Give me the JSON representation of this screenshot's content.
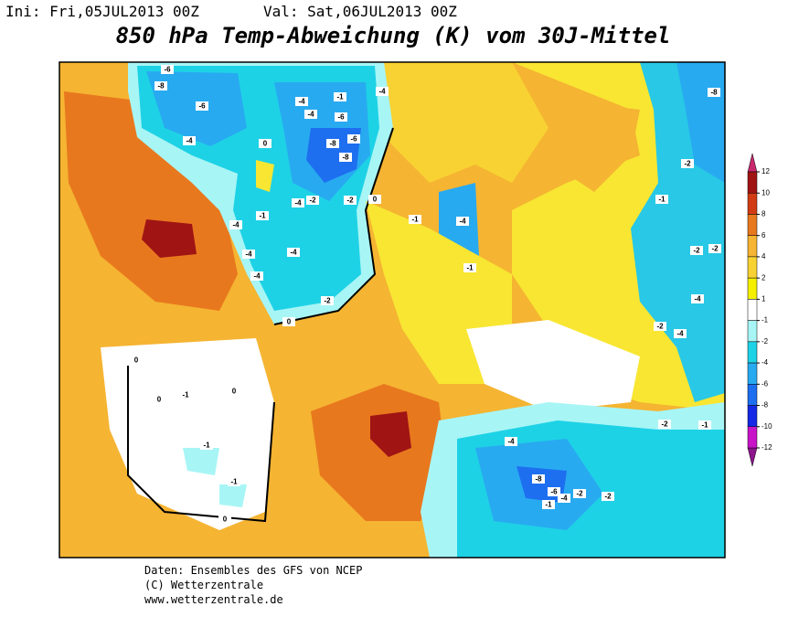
{
  "header": {
    "init": "Ini: Fri,05JUL2013 00Z",
    "valid": "Val: Sat,06JUL2013 00Z"
  },
  "title": "850 hPa Temp-Abweichung (K) vom 30J-Mittel",
  "colorbar": {
    "ticks": [
      12,
      10,
      8,
      6,
      4,
      2,
      1,
      -1,
      -2,
      -4,
      -6,
      -8,
      -10,
      -12
    ],
    "colors": [
      "#a01414",
      "#d23c14",
      "#e8781e",
      "#f5b432",
      "#f8d232",
      "#f5f000",
      "#ffffff",
      "#a8f5f5",
      "#1ed2e6",
      "#28aaf0",
      "#1e6ef0",
      "#1428e6",
      "#c814c8"
    ],
    "top_color": "#c8286e",
    "bottom_color": "#8c148c"
  },
  "contour_labels": [
    -6,
    -8,
    -6,
    -4,
    0,
    -4,
    -4,
    -1,
    -6,
    -8,
    -6,
    -8,
    -4,
    -4,
    -2,
    -2,
    0,
    -4,
    -1,
    -4,
    -4,
    -4,
    -2,
    0,
    -1,
    -4,
    -1,
    0,
    0,
    -1,
    0,
    -1,
    -1,
    0,
    -4,
    -8,
    -6,
    -4,
    -2,
    -2,
    -1,
    -2,
    -1,
    -2,
    -1,
    -2,
    -2,
    -2,
    -4,
    -4,
    -8
  ],
  "footer": [
    "Daten: Ensembles des GFS von NCEP",
    "(C) Wetterzentrale",
    "www.wetterzentrale.de"
  ]
}
